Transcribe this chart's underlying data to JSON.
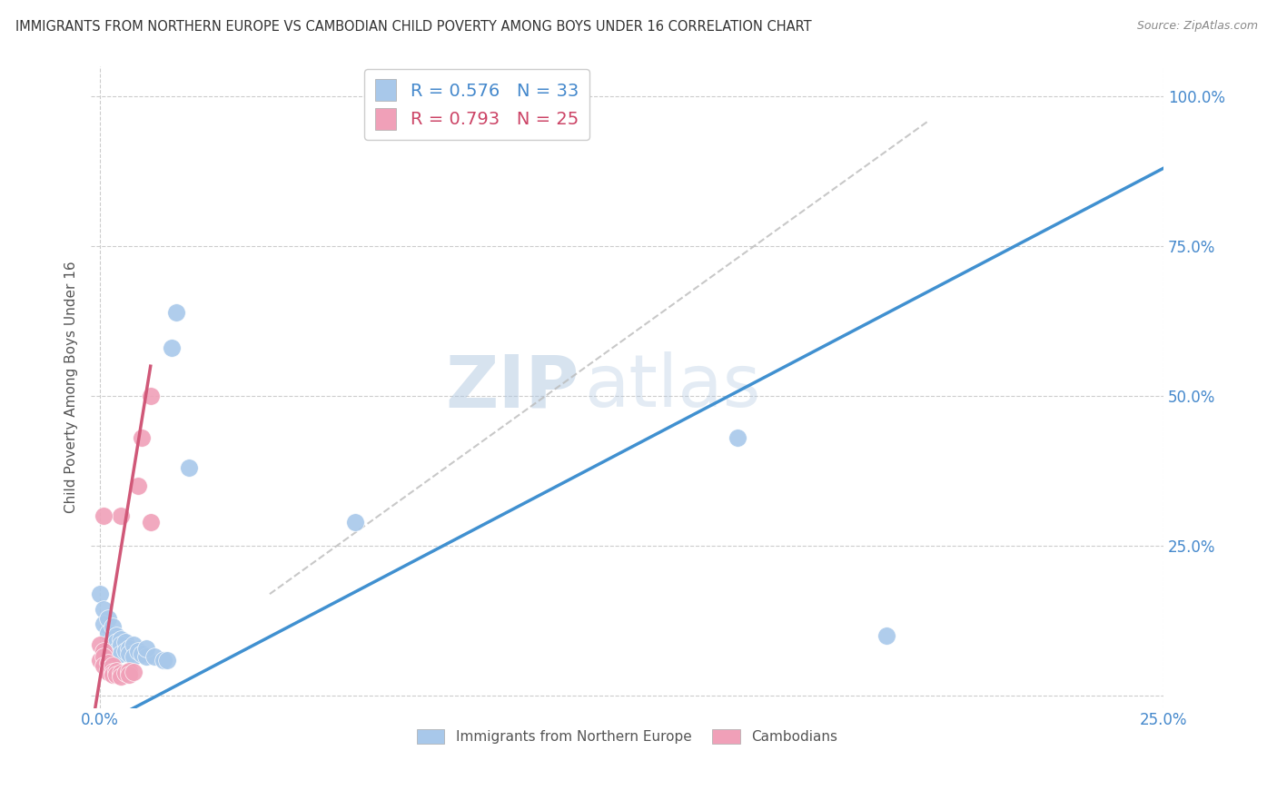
{
  "title": "IMMIGRANTS FROM NORTHERN EUROPE VS CAMBODIAN CHILD POVERTY AMONG BOYS UNDER 16 CORRELATION CHART",
  "source": "Source: ZipAtlas.com",
  "ylabel": "Child Poverty Among Boys Under 16",
  "yticks_vals": [
    0.0,
    0.25,
    0.5,
    0.75,
    1.0
  ],
  "yticks_labels": [
    "",
    "25.0%",
    "50.0%",
    "75.0%",
    "100.0%"
  ],
  "xticks_vals": [
    0.0,
    0.25
  ],
  "xticks_labels": [
    "0.0%",
    "25.0%"
  ],
  "legend1_label": "Immigrants from Northern Europe",
  "legend2_label": "Cambodians",
  "r1": 0.576,
  "n1": 33,
  "r2": 0.793,
  "n2": 25,
  "blue_color": "#a8c8ea",
  "pink_color": "#f0a0b8",
  "line_blue": "#4090d0",
  "line_pink": "#d05878",
  "watermark_zip": "ZIP",
  "watermark_atlas": "atlas",
  "blue_scatter": [
    [
      0.0,
      0.17
    ],
    [
      0.001,
      0.145
    ],
    [
      0.001,
      0.12
    ],
    [
      0.002,
      0.13
    ],
    [
      0.002,
      0.105
    ],
    [
      0.003,
      0.115
    ],
    [
      0.003,
      0.095
    ],
    [
      0.003,
      0.08
    ],
    [
      0.004,
      0.1
    ],
    [
      0.004,
      0.09
    ],
    [
      0.004,
      0.075
    ],
    [
      0.005,
      0.095
    ],
    [
      0.005,
      0.085
    ],
    [
      0.005,
      0.07
    ],
    [
      0.006,
      0.09
    ],
    [
      0.006,
      0.075
    ],
    [
      0.007,
      0.08
    ],
    [
      0.007,
      0.07
    ],
    [
      0.008,
      0.085
    ],
    [
      0.008,
      0.065
    ],
    [
      0.009,
      0.075
    ],
    [
      0.01,
      0.07
    ],
    [
      0.011,
      0.065
    ],
    [
      0.011,
      0.08
    ],
    [
      0.013,
      0.065
    ],
    [
      0.015,
      0.06
    ],
    [
      0.016,
      0.06
    ],
    [
      0.017,
      0.58
    ],
    [
      0.018,
      0.64
    ],
    [
      0.021,
      0.38
    ],
    [
      0.15,
      0.43
    ],
    [
      0.185,
      0.1
    ],
    [
      0.06,
      0.29
    ]
  ],
  "pink_scatter": [
    [
      0.0,
      0.085
    ],
    [
      0.0,
      0.06
    ],
    [
      0.001,
      0.075
    ],
    [
      0.001,
      0.065
    ],
    [
      0.001,
      0.05
    ],
    [
      0.002,
      0.055
    ],
    [
      0.002,
      0.045
    ],
    [
      0.002,
      0.04
    ],
    [
      0.003,
      0.05
    ],
    [
      0.003,
      0.04
    ],
    [
      0.003,
      0.035
    ],
    [
      0.004,
      0.042
    ],
    [
      0.004,
      0.035
    ],
    [
      0.005,
      0.038
    ],
    [
      0.005,
      0.032
    ],
    [
      0.005,
      0.3
    ],
    [
      0.006,
      0.038
    ],
    [
      0.007,
      0.042
    ],
    [
      0.007,
      0.035
    ],
    [
      0.008,
      0.04
    ],
    [
      0.009,
      0.35
    ],
    [
      0.01,
      0.43
    ],
    [
      0.012,
      0.5
    ],
    [
      0.012,
      0.29
    ],
    [
      0.001,
      0.3
    ]
  ],
  "blue_line_x": [
    0.0,
    0.25
  ],
  "blue_line_y": [
    -0.05,
    0.88
  ],
  "pink_line_x": [
    -0.001,
    0.012
  ],
  "pink_line_y": [
    -0.02,
    0.55
  ],
  "dashed_line_x": [
    0.04,
    0.195
  ],
  "dashed_line_y": [
    0.17,
    0.96
  ],
  "xmin": -0.002,
  "xmax": 0.25,
  "ymin": -0.02,
  "ymax": 1.05
}
